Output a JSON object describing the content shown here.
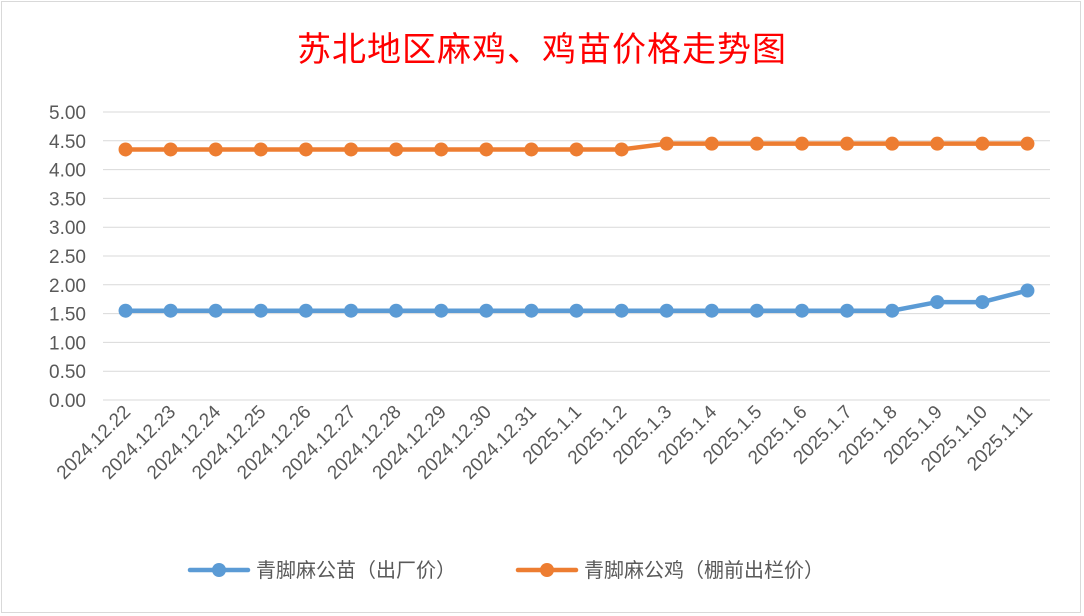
{
  "chart_data": {
    "type": "line",
    "title": "苏北地区麻鸡、鸡苗价格走势图",
    "xlabel": "",
    "ylabel": "",
    "ylim": [
      0,
      5
    ],
    "yticks": [
      "0.00",
      "0.50",
      "1.00",
      "1.50",
      "2.00",
      "2.50",
      "3.00",
      "3.50",
      "4.00",
      "4.50",
      "5.00"
    ],
    "grid": true,
    "legend_position": "bottom",
    "categories": [
      "2024.12.22",
      "2024.12.23",
      "2024.12.24",
      "2024.12.25",
      "2024.12.26",
      "2024.12.27",
      "2024.12.28",
      "2024.12.29",
      "2024.12.30",
      "2024.12.31",
      "2025.1.1",
      "2025.1.2",
      "2025.1.3",
      "2025.1.4",
      "2025.1.5",
      "2025.1.6",
      "2025.1.7",
      "2025.1.8",
      "2025.1.9",
      "2025.1.10",
      "2025.1.11"
    ],
    "series": [
      {
        "name": "青脚麻公苗（出厂价）",
        "color": "#5b9bd5",
        "values": [
          1.55,
          1.55,
          1.55,
          1.55,
          1.55,
          1.55,
          1.55,
          1.55,
          1.55,
          1.55,
          1.55,
          1.55,
          1.55,
          1.55,
          1.55,
          1.55,
          1.55,
          1.55,
          1.7,
          1.7,
          1.9
        ]
      },
      {
        "name": "青脚麻公鸡（棚前出栏价）",
        "color": "#ed7d31",
        "values": [
          4.35,
          4.35,
          4.35,
          4.35,
          4.35,
          4.35,
          4.35,
          4.35,
          4.35,
          4.35,
          4.35,
          4.35,
          4.45,
          4.45,
          4.45,
          4.45,
          4.45,
          4.45,
          4.45,
          4.45,
          4.45
        ]
      }
    ]
  }
}
